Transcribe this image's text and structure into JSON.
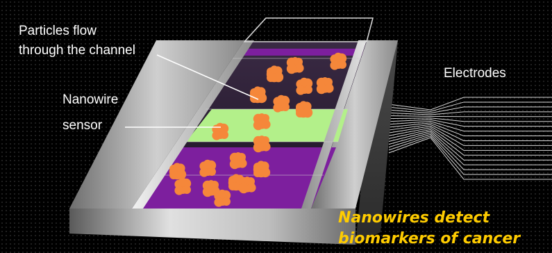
{
  "labels": {
    "particles_line1": "Particles flow",
    "particles_line2": "through the channel",
    "nanowire_line1": "Nanowire",
    "nanowire_line2": "sensor",
    "electrodes": "Electrodes"
  },
  "caption": {
    "line1": "Nanowires detect",
    "line2": "biomarkers of cancer"
  },
  "colors": {
    "background": "#000000",
    "chip": "#9a9a9a",
    "channel_purple": "#7d1f9e",
    "sensor_green": "#b3f08a",
    "particle": "#f5873a",
    "caption": "#ffcc00",
    "label": "#ffffff"
  }
}
